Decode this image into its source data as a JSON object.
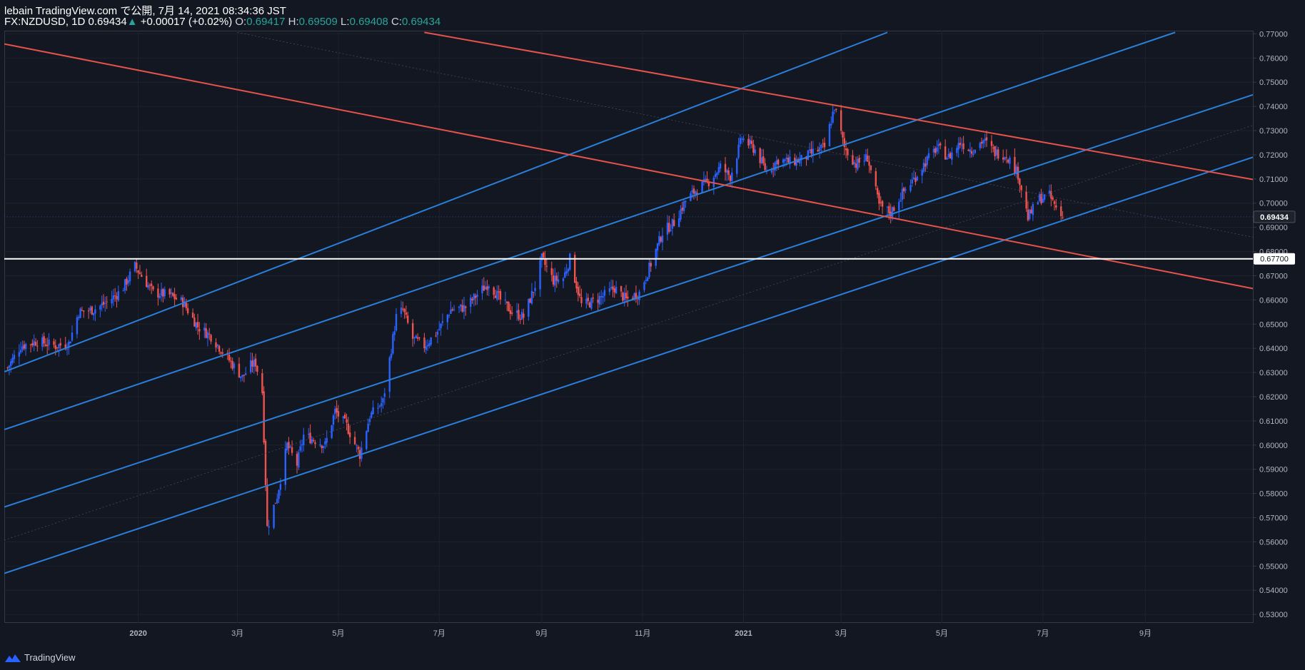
{
  "header": {
    "publisher": "lebain TradingView.com で公開, 7月 14, 2021 08:34:36 JST",
    "symbol": "FX:NZDUSD, 1D",
    "last": "0.69434",
    "change_arrow": "▲",
    "change": "+0.00017 (+0.02%)",
    "o_label": "O:",
    "o_value": "0.69417",
    "h_label": "H:",
    "h_value": "0.69509",
    "l_label": "L:",
    "l_value": "0.69408",
    "c_label": "C:",
    "c_value": "0.69434"
  },
  "footer": {
    "brand": "TradingView"
  },
  "colors": {
    "bg": "#131722",
    "up": "#2962ff",
    "down": "#ef5350",
    "channel": "#2a7fd8",
    "downtrend": "#e5534b",
    "support": "#ffffff",
    "grid": "#1e222d",
    "text": "#b2b5be"
  },
  "chart_data": {
    "type": "candlestick",
    "symbol": "FX:NZDUSD",
    "interval": "1D",
    "x_tick_labels": [
      "2020",
      "3月",
      "5月",
      "7月",
      "9月",
      "11月",
      "2021",
      "3月",
      "5月",
      "7月",
      "9月"
    ],
    "x_tick_dates": [
      "2020-01-01",
      "2020-03-01",
      "2020-05-01",
      "2020-07-01",
      "2020-09-01",
      "2020-11-01",
      "2021-01-01",
      "2021-03-01",
      "2021-05-01",
      "2021-07-01",
      "2021-09-01"
    ],
    "y_ticks": [
      "0.77000",
      "0.76000",
      "0.75000",
      "0.74000",
      "0.73000",
      "0.72000",
      "0.71000",
      "0.70000",
      "0.69000",
      "0.68000",
      "0.67000",
      "0.66000",
      "0.65000",
      "0.64000",
      "0.63000",
      "0.62000",
      "0.61000",
      "0.60000",
      "0.59000",
      "0.58000",
      "0.57000",
      "0.56000",
      "0.55000",
      "0.54000",
      "0.53000"
    ],
    "ylim": [
      0.5265,
      0.7713
    ],
    "xlim": [
      "2019-10-12",
      "2021-11-05"
    ],
    "last_price_label": "0.69434",
    "hline_label": "0.67700",
    "hline_value": 0.677,
    "close_path": [
      [
        "2019-10-14",
        0.632
      ],
      [
        "2019-10-22",
        0.641
      ],
      [
        "2019-11-01",
        0.643
      ],
      [
        "2019-11-12",
        0.641
      ],
      [
        "2019-11-20",
        0.642
      ],
      [
        "2019-11-26",
        0.655
      ],
      [
        "2019-12-05",
        0.656
      ],
      [
        "2019-12-13",
        0.659
      ],
      [
        "2019-12-22",
        0.664
      ],
      [
        "2019-12-30",
        0.674
      ],
      [
        "2020-01-10",
        0.663
      ],
      [
        "2020-01-20",
        0.662
      ],
      [
        "2020-01-28",
        0.659
      ],
      [
        "2020-02-06",
        0.649
      ],
      [
        "2020-02-14",
        0.645
      ],
      [
        "2020-02-24",
        0.636
      ],
      [
        "2020-03-04",
        0.628
      ],
      [
        "2020-03-09",
        0.633
      ],
      [
        "2020-03-12",
        0.634
      ],
      [
        "2020-03-16",
        0.622
      ],
      [
        "2020-03-19",
        0.566
      ],
      [
        "2020-03-25",
        0.579
      ],
      [
        "2020-03-31",
        0.6
      ],
      [
        "2020-04-06",
        0.592
      ],
      [
        "2020-04-10",
        0.604
      ],
      [
        "2020-04-17",
        0.602
      ],
      [
        "2020-04-23",
        0.6
      ],
      [
        "2020-04-29",
        0.614
      ],
      [
        "2020-05-06",
        0.608
      ],
      [
        "2020-05-14",
        0.596
      ],
      [
        "2020-05-20",
        0.612
      ],
      [
        "2020-05-28",
        0.618
      ],
      [
        "2020-06-05",
        0.653
      ],
      [
        "2020-06-09",
        0.656
      ],
      [
        "2020-06-15",
        0.644
      ],
      [
        "2020-06-22",
        0.641
      ],
      [
        "2020-06-30",
        0.647
      ],
      [
        "2020-07-08",
        0.656
      ],
      [
        "2020-07-17",
        0.657
      ],
      [
        "2020-07-25",
        0.663
      ],
      [
        "2020-07-31",
        0.667
      ],
      [
        "2020-08-07",
        0.66
      ],
      [
        "2020-08-14",
        0.655
      ],
      [
        "2020-08-21",
        0.653
      ],
      [
        "2020-08-28",
        0.666
      ],
      [
        "2020-09-01",
        0.677
      ],
      [
        "2020-09-08",
        0.668
      ],
      [
        "2020-09-14",
        0.669
      ],
      [
        "2020-09-18",
        0.677
      ],
      [
        "2020-09-25",
        0.658
      ],
      [
        "2020-10-01",
        0.659
      ],
      [
        "2020-10-09",
        0.662
      ],
      [
        "2020-10-15",
        0.665
      ],
      [
        "2020-10-22",
        0.66
      ],
      [
        "2020-10-30",
        0.663
      ],
      [
        "2020-11-06",
        0.675
      ],
      [
        "2020-11-13",
        0.688
      ],
      [
        "2020-11-20",
        0.692
      ],
      [
        "2020-11-27",
        0.701
      ],
      [
        "2020-12-04",
        0.706
      ],
      [
        "2020-12-11",
        0.709
      ],
      [
        "2020-12-18",
        0.715
      ],
      [
        "2020-12-24",
        0.711
      ],
      [
        "2020-12-31",
        0.727
      ],
      [
        "2021-01-08",
        0.722
      ],
      [
        "2021-01-15",
        0.713
      ],
      [
        "2021-01-22",
        0.718
      ],
      [
        "2021-01-29",
        0.717
      ],
      [
        "2021-02-05",
        0.718
      ],
      [
        "2021-02-12",
        0.721
      ],
      [
        "2021-02-19",
        0.723
      ],
      [
        "2021-02-25",
        0.74
      ],
      [
        "2021-03-03",
        0.723
      ],
      [
        "2021-03-10",
        0.716
      ],
      [
        "2021-03-17",
        0.719
      ],
      [
        "2021-03-24",
        0.699
      ],
      [
        "2021-03-31",
        0.696
      ],
      [
        "2021-04-07",
        0.704
      ],
      [
        "2021-04-14",
        0.71
      ],
      [
        "2021-04-21",
        0.717
      ],
      [
        "2021-04-28",
        0.723
      ],
      [
        "2021-05-05",
        0.719
      ],
      [
        "2021-05-12",
        0.725
      ],
      [
        "2021-05-19",
        0.722
      ],
      [
        "2021-05-26",
        0.726
      ],
      [
        "2021-06-02",
        0.721
      ],
      [
        "2021-06-09",
        0.72
      ],
      [
        "2021-06-16",
        0.712
      ],
      [
        "2021-06-22",
        0.694
      ],
      [
        "2021-06-29",
        0.702
      ],
      [
        "2021-07-05",
        0.703
      ],
      [
        "2021-07-09",
        0.698
      ],
      [
        "2021-07-13",
        0.694
      ]
    ],
    "drawings": {
      "ascending_channel_lines": [
        [
          [
            "2019-10-12",
            0.6303
          ],
          [
            "2021-03-29",
            0.7706
          ]
        ],
        [
          [
            "2019-10-12",
            0.6064
          ],
          [
            "2021-09-19",
            0.7706
          ]
        ],
        [
          [
            "2019-10-12",
            0.5744
          ],
          [
            "2021-11-05",
            0.7448
          ]
        ],
        [
          [
            "2019-10-12",
            0.547
          ],
          [
            "2021-11-05",
            0.719
          ]
        ]
      ],
      "descending_lines": [
        [
          [
            "2019-10-12",
            0.7658
          ],
          [
            "2021-11-05",
            0.6647
          ]
        ],
        [
          [
            "2020-06-22",
            0.7706
          ],
          [
            "2021-11-05",
            0.7098
          ]
        ]
      ],
      "faint_lines": [
        [
          [
            "2020-03-01",
            0.7706
          ],
          [
            "2021-11-05",
            0.6859
          ]
        ],
        [
          [
            "2019-10-12",
            0.5607
          ],
          [
            "2021-11-05",
            0.7322
          ]
        ]
      ]
    }
  }
}
